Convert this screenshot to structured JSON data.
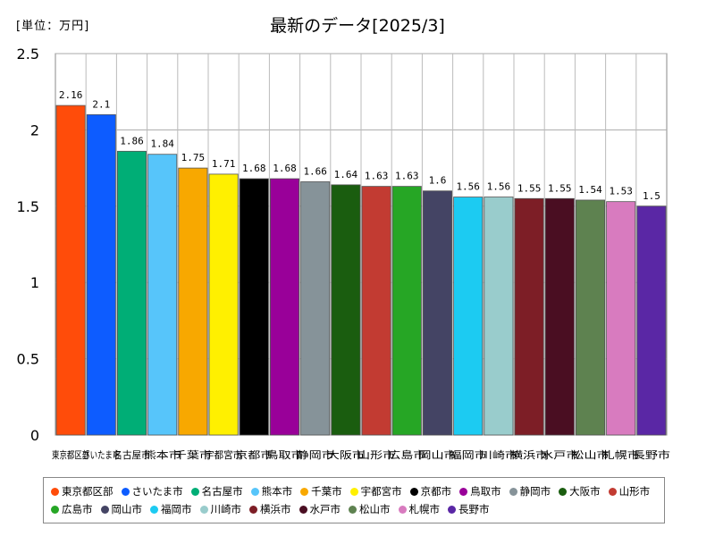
{
  "unit_label": "[単位：万円]",
  "chart_data": {
    "type": "bar",
    "title": "最新のデータ[2025/3]",
    "ylabel": "",
    "xlabel": "",
    "ylim": [
      0,
      2.5
    ],
    "yticks": [
      "0",
      "0.5",
      "1",
      "1.5",
      "2",
      "2.5"
    ],
    "categories": [
      "東京都区部",
      "さいたま市",
      "名古屋市",
      "熊本市",
      "千葉市",
      "宇都宮市",
      "京都市",
      "鳥取市",
      "静岡市",
      "大阪市",
      "山形市",
      "広島市",
      "岡山市",
      "福岡市",
      "川崎市",
      "横浜市",
      "水戸市",
      "松山市",
      "札幌市",
      "長野市"
    ],
    "values": [
      2.16,
      2.1,
      1.86,
      1.84,
      1.75,
      1.71,
      1.68,
      1.68,
      1.66,
      1.64,
      1.63,
      1.63,
      1.6,
      1.56,
      1.56,
      1.55,
      1.55,
      1.54,
      1.53,
      1.5
    ],
    "value_labels": [
      "2.16",
      "2.1",
      "1.86",
      "1.84",
      "1.75",
      "1.71",
      "1.68",
      "1.68",
      "1.66",
      "1.64",
      "1.63",
      "1.63",
      "1.6",
      "1.56",
      "1.56",
      "1.55",
      "1.55",
      "1.54",
      "1.53",
      "1.5"
    ],
    "colors": [
      "#ff4c0a",
      "#0d5cff",
      "#00ae76",
      "#57c5fa",
      "#f8a800",
      "#fff000",
      "#000000",
      "#990099",
      "#869399",
      "#1a5d0f",
      "#c23b32",
      "#26a625",
      "#444464",
      "#1ccbf2",
      "#99cccc",
      "#7d1e26",
      "#4a0e22",
      "#5e8250",
      "#d87bbf",
      "#5a27a5"
    ],
    "legend_position": "bottom",
    "grid": true
  }
}
